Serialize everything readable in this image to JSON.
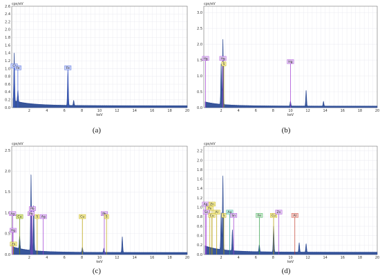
{
  "colors": {
    "spectrum_fill": "#1e3a8a",
    "spectrum_haze": "#67e8f9",
    "grid": "#e6e6ee",
    "axis": "#555555"
  },
  "chart_data": [
    {
      "type": "line",
      "panel": "a",
      "caption": "(a)",
      "ylabel": "cps/eV",
      "xlabel": "keV",
      "xlim": [
        0,
        20
      ],
      "ylim": [
        0,
        2.6
      ],
      "xticks": [
        2,
        4,
        6,
        8,
        10,
        12,
        14,
        16,
        18,
        20
      ],
      "yticks": [
        0.0,
        0.2,
        0.4,
        0.6,
        0.8,
        1.0,
        1.2,
        1.4,
        1.6,
        1.8,
        2.0,
        2.2,
        2.4,
        2.6
      ],
      "x_tick_labels": [
        "2",
        "4",
        "6",
        "8",
        "10",
        "12",
        "14",
        "16",
        "18",
        "20"
      ],
      "y_tick_labels": [
        "0.0",
        "0.2",
        "0.4",
        "0.6",
        "0.8",
        "1.0",
        "1.2",
        "1.4",
        "1.6",
        "1.8",
        "2.0",
        "2.2",
        "2.4",
        "2.6"
      ],
      "peaks": [
        {
          "x": 0.28,
          "y": 1.25
        },
        {
          "x": 0.7,
          "y": 0.3
        },
        {
          "x": 6.4,
          "y": 0.92
        },
        {
          "x": 7.06,
          "y": 0.13
        }
      ],
      "markers": [
        {
          "label": "Cl",
          "x": 0.28,
          "y": 1.07,
          "color": "#3b5bdb",
          "fill": "#c5cff7"
        },
        {
          "label": "Fe",
          "x": 0.7,
          "y": 1.02,
          "color": "#3b5bdb",
          "fill": "#c5cff7"
        },
        {
          "label": "Fe",
          "x": 6.4,
          "y": 1.02,
          "color": "#3b5bdb",
          "fill": "#c5cff7"
        }
      ]
    },
    {
      "type": "line",
      "panel": "b",
      "caption": "(b)",
      "ylabel": "cps/eV",
      "xlabel": "keV",
      "xlim": [
        0,
        20
      ],
      "ylim": [
        0,
        3.2
      ],
      "xticks": [
        2,
        4,
        6,
        8,
        10,
        12,
        14,
        16,
        18,
        20
      ],
      "yticks": [
        0.0,
        0.5,
        1.0,
        1.5,
        2.0,
        2.5,
        3.0
      ],
      "x_tick_labels": [
        "2",
        "4",
        "6",
        "8",
        "10",
        "12",
        "14",
        "16",
        "18",
        "20"
      ],
      "y_tick_labels": [
        "0.0",
        "0.5",
        "1.0",
        "1.5",
        "2.0",
        "2.5",
        "3.0"
      ],
      "peaks": [
        {
          "x": 2.2,
          "y": 2.1
        },
        {
          "x": 2.0,
          "y": 1.3
        },
        {
          "x": 9.99,
          "y": 0.15
        },
        {
          "x": 11.8,
          "y": 0.5
        },
        {
          "x": 13.8,
          "y": 0.15
        }
      ],
      "markers": [
        {
          "label": "Hg",
          "x": 0.2,
          "y": 1.55,
          "color": "#a13bd4",
          "fill": "#e2c6f3"
        },
        {
          "label": "Hg",
          "x": 2.2,
          "y": 1.55,
          "color": "#a13bd4",
          "fill": "#e2c6f3"
        },
        {
          "label": "S",
          "x": 2.31,
          "y": 1.38,
          "color": "#b8a100",
          "fill": "#f3ec9a"
        },
        {
          "label": "Hg",
          "x": 9.99,
          "y": 1.45,
          "color": "#a13bd4",
          "fill": "#e2c6f3"
        }
      ]
    },
    {
      "type": "line",
      "panel": "c",
      "caption": "(c)",
      "ylabel": "cps/eV",
      "xlabel": "keV",
      "xlim": [
        0,
        20
      ],
      "ylim": [
        0,
        2.6
      ],
      "xticks": [
        2,
        4,
        6,
        8,
        10,
        12,
        14,
        16,
        18,
        20
      ],
      "yticks": [
        0.0,
        0.5,
        1.0,
        1.5,
        2.0,
        2.5
      ],
      "x_tick_labels": [
        "2",
        "4",
        "6",
        "8",
        "10",
        "12",
        "14",
        "16",
        "18",
        "20"
      ],
      "y_tick_labels": [
        "0.0",
        "0.5",
        "1.0",
        "1.5",
        "2.0",
        "2.5"
      ],
      "peaks": [
        {
          "x": 2.2,
          "y": 1.85
        },
        {
          "x": 2.5,
          "y": 1.1
        },
        {
          "x": 0.9,
          "y": 0.3
        },
        {
          "x": 8.05,
          "y": 0.12
        },
        {
          "x": 10.5,
          "y": 0.1
        },
        {
          "x": 12.6,
          "y": 0.38
        }
      ],
      "markers": [
        {
          "label": "Ag",
          "x": 0.1,
          "y": 0.98,
          "color": "#a13bd4",
          "fill": "#e2c6f3"
        },
        {
          "label": "Cu",
          "x": 0.9,
          "y": 0.91,
          "color": "#6b8e00",
          "fill": "#dbe88c"
        },
        {
          "label": "Pb",
          "x": 2.35,
          "y": 1.1,
          "color": "#a13bd4",
          "fill": "#e2c6f3"
        },
        {
          "label": "Pb",
          "x": 2.2,
          "y": 0.98,
          "color": "#a13bd4",
          "fill": "#e2c6f3"
        },
        {
          "label": "S",
          "x": 2.9,
          "y": 0.91,
          "color": "#b8a100",
          "fill": "#f3ec9a"
        },
        {
          "label": "Ag",
          "x": 3.6,
          "y": 0.91,
          "color": "#a13bd4",
          "fill": "#e2c6f3"
        },
        {
          "label": "Cu",
          "x": 8.05,
          "y": 0.91,
          "color": "#b8a100",
          "fill": "#f3ec9a"
        },
        {
          "label": "Pb",
          "x": 10.55,
          "y": 0.98,
          "color": "#a13bd4",
          "fill": "#e2c6f3"
        },
        {
          "label": "S",
          "x": 10.8,
          "y": 0.91,
          "color": "#b8a100",
          "fill": "#f3ec9a"
        },
        {
          "label": "Hg",
          "x": 0.15,
          "y": 0.58,
          "color": "#a13bd4",
          "fill": "#e2c6f3"
        },
        {
          "label": "Zn",
          "x": 0.2,
          "y": 0.25,
          "color": "#b8a100",
          "fill": "#f3ec9a"
        }
      ]
    },
    {
      "type": "line",
      "panel": "d",
      "caption": "(d)",
      "ylabel": "cps/eV",
      "xlabel": "keV",
      "xlim": [
        0,
        20
      ],
      "ylim": [
        0,
        2.3
      ],
      "xticks": [
        2,
        4,
        6,
        8,
        10,
        12,
        14,
        16,
        18,
        20
      ],
      "yticks": [
        0.0,
        0.2,
        0.4,
        0.6,
        0.8,
        1.0,
        1.2,
        1.4,
        1.6,
        1.8,
        2.0,
        2.2
      ],
      "x_tick_labels": [
        "2",
        "4",
        "6",
        "8",
        "10",
        "12",
        "14",
        "16",
        "18",
        "20"
      ],
      "y_tick_labels": [
        "0.0",
        "0.2",
        "0.4",
        "0.6",
        "0.8",
        "1.0",
        "1.2",
        "1.4",
        "1.6",
        "1.8",
        "2.0",
        "2.2"
      ],
      "peaks": [
        {
          "x": 2.2,
          "y": 1.6
        },
        {
          "x": 2.0,
          "y": 0.8
        },
        {
          "x": 3.3,
          "y": 0.45
        },
        {
          "x": 8.05,
          "y": 0.55
        },
        {
          "x": 6.4,
          "y": 0.15
        },
        {
          "x": 11.0,
          "y": 0.2
        },
        {
          "x": 11.8,
          "y": 0.18
        }
      ],
      "markers": [
        {
          "label": "Ag",
          "x": 0.2,
          "y": 1.07,
          "color": "#a13bd4",
          "fill": "#e2c6f3"
        },
        {
          "label": "Zn",
          "x": 0.95,
          "y": 1.07,
          "color": "#b8a100",
          "fill": "#f3ec9a"
        },
        {
          "label": "Fe",
          "x": 0.7,
          "y": 0.98,
          "color": "#b8a100",
          "fill": "#f3ec9a"
        },
        {
          "label": "Sn",
          "x": 0.3,
          "y": 0.9,
          "color": "#a13bd4",
          "fill": "#e2c6f3"
        },
        {
          "label": "Al",
          "x": 1.49,
          "y": 0.9,
          "color": "#b8a100",
          "fill": "#f3ec9a"
        },
        {
          "label": "Cu",
          "x": 0.93,
          "y": 0.83,
          "color": "#b8a100",
          "fill": "#f3ec9a"
        },
        {
          "label": "Ag",
          "x": 2.98,
          "y": 0.9,
          "color": "#2ba38b",
          "fill": "#b8ecdf"
        },
        {
          "label": "S",
          "x": 2.31,
          "y": 0.83,
          "color": "#b8a100",
          "fill": "#f3ec9a"
        },
        {
          "label": "Sn",
          "x": 3.44,
          "y": 0.83,
          "color": "#a13bd4",
          "fill": "#e2c6f3"
        },
        {
          "label": "Fe",
          "x": 6.4,
          "y": 0.83,
          "color": "#2f9e44",
          "fill": "#c3ecc9"
        },
        {
          "label": "Cu",
          "x": 8.05,
          "y": 0.83,
          "color": "#b8a100",
          "fill": "#f3ec9a"
        },
        {
          "label": "Zn",
          "x": 8.64,
          "y": 0.9,
          "color": "#a13bd4",
          "fill": "#e2c6f3"
        },
        {
          "label": "Al",
          "x": 10.5,
          "y": 0.83,
          "color": "#c0392b",
          "fill": "#f6c7c1"
        }
      ]
    }
  ]
}
